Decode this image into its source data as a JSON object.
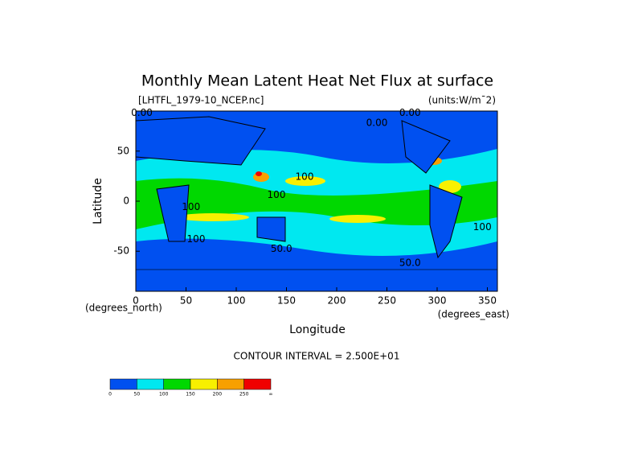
{
  "chart_data": {
    "type": "contour",
    "title": "Monthly Mean Latent Heat Net Flux at surface",
    "file_label": "[LHTFL_1979-10_NCEP.nc]",
    "units_label": "(units:W/m¯2)",
    "y_label": "Latitude",
    "x_label": "Longitude",
    "y_units": "(degrees_north)",
    "x_units": "(degrees_east)",
    "contour_interval": "CONTOUR INTERVAL = 2.500E+01",
    "xlim": [
      0,
      360
    ],
    "ylim": [
      -90,
      90
    ],
    "xticks": [
      0,
      50,
      100,
      150,
      200,
      250,
      300,
      350
    ],
    "yticks": [
      -50,
      0,
      50
    ],
    "contour_labels": [
      {
        "text": "0.00",
        "lon": 6,
        "lat": 88
      },
      {
        "text": "0.00",
        "lon": 273,
        "lat": 88
      },
      {
        "text": "0.00",
        "lon": 240,
        "lat": 78
      },
      {
        "text": "100",
        "lon": 168,
        "lat": 24
      },
      {
        "text": "100",
        "lon": 140,
        "lat": 6
      },
      {
        "text": "100",
        "lon": 55,
        "lat": -6
      },
      {
        "text": "100",
        "lon": 60,
        "lat": -38
      },
      {
        "text": "100",
        "lon": 345,
        "lat": -26
      },
      {
        "text": "50.0",
        "lon": 145,
        "lat": -48
      },
      {
        "text": "50.0",
        "lon": 273,
        "lat": -62
      }
    ],
    "colorbar": {
      "levels": [
        0,
        50,
        100,
        150,
        200,
        250
      ],
      "end_label": "∞",
      "colors": [
        "#0050f0",
        "#00e8f0",
        "#00d800",
        "#f8f000",
        "#f8a000",
        "#f00000"
      ]
    }
  }
}
